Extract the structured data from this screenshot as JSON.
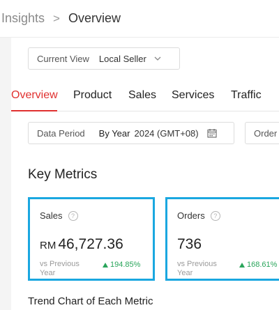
{
  "breadcrumb": {
    "root": "Insights",
    "separator": ">",
    "current": "Overview"
  },
  "view_selector": {
    "label": "Current View",
    "value": "Local Seller"
  },
  "tabs": [
    {
      "label": "Overview",
      "active": true
    },
    {
      "label": "Product",
      "active": false
    },
    {
      "label": "Sales",
      "active": false
    },
    {
      "label": "Services",
      "active": false
    },
    {
      "label": "Traffic",
      "active": false
    }
  ],
  "period": {
    "label": "Data Period",
    "mode": "By Year",
    "value": "2024 (GMT+08)"
  },
  "order_filter": {
    "label": "Order"
  },
  "key_metrics": {
    "title": "Key Metrics",
    "cards": [
      {
        "title": "Sales",
        "currency": "RM",
        "value": "46,727.36",
        "compare_label": "vs Previous Year",
        "delta": "194.85%",
        "trend": "up"
      },
      {
        "title": "Orders",
        "currency": "",
        "value": "736",
        "compare_label": "vs Previous Year",
        "delta": "168.61%",
        "trend": "up"
      }
    ]
  },
  "trend_chart_title": "Trend Chart of Each Metric",
  "colors": {
    "accent_red": "#e0302f",
    "highlight_blue": "#1aa7e0",
    "positive_green": "#2aa55b"
  }
}
